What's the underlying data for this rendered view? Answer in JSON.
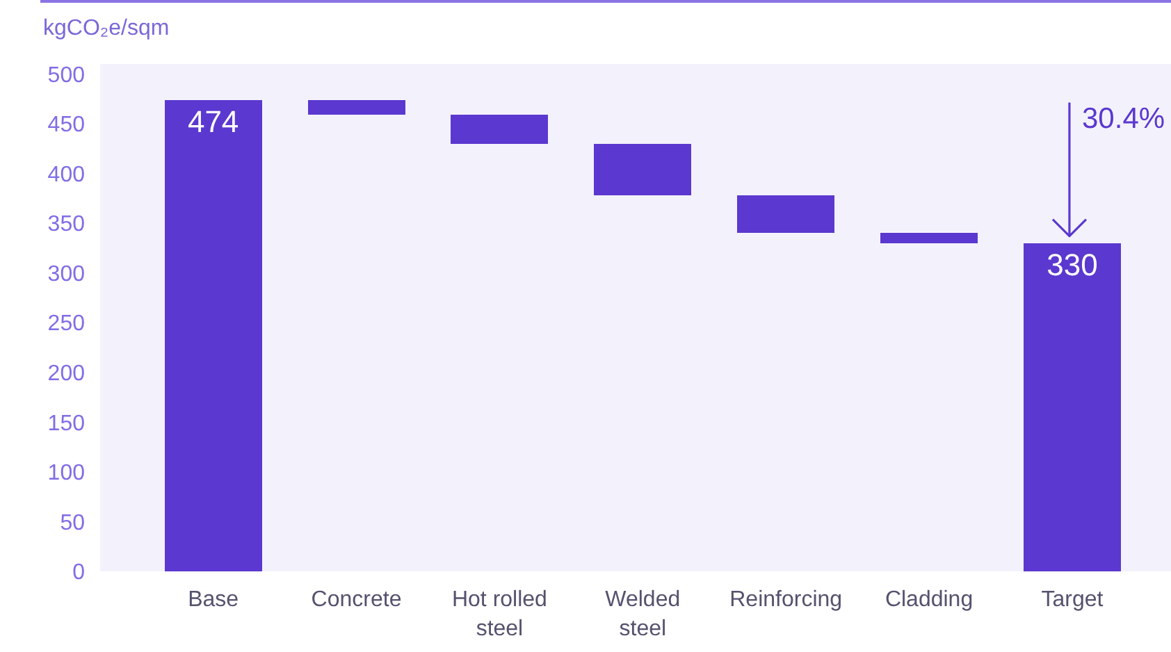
{
  "chart_data": {
    "type": "bar",
    "ylabel": "kgCO₂e/sqm",
    "categories": [
      "Base",
      "Concrete",
      "Hot rolled steel",
      "Welded steel",
      "Reinforcing",
      "Cladding",
      "Target"
    ],
    "values": [
      474,
      -15,
      -29,
      -52,
      -38,
      -10,
      330
    ],
    "base": [
      0,
      474,
      459,
      430,
      378,
      340,
      0
    ],
    "color": "#5b38cf",
    "ylim": [
      0,
      510
    ],
    "yticks": [
      0,
      50,
      100,
      150,
      200,
      250,
      300,
      350,
      400,
      450,
      500
    ],
    "value_labels": [
      "474",
      null,
      null,
      null,
      null,
      null,
      "330"
    ],
    "annotations": [
      "30.4%"
    ]
  }
}
